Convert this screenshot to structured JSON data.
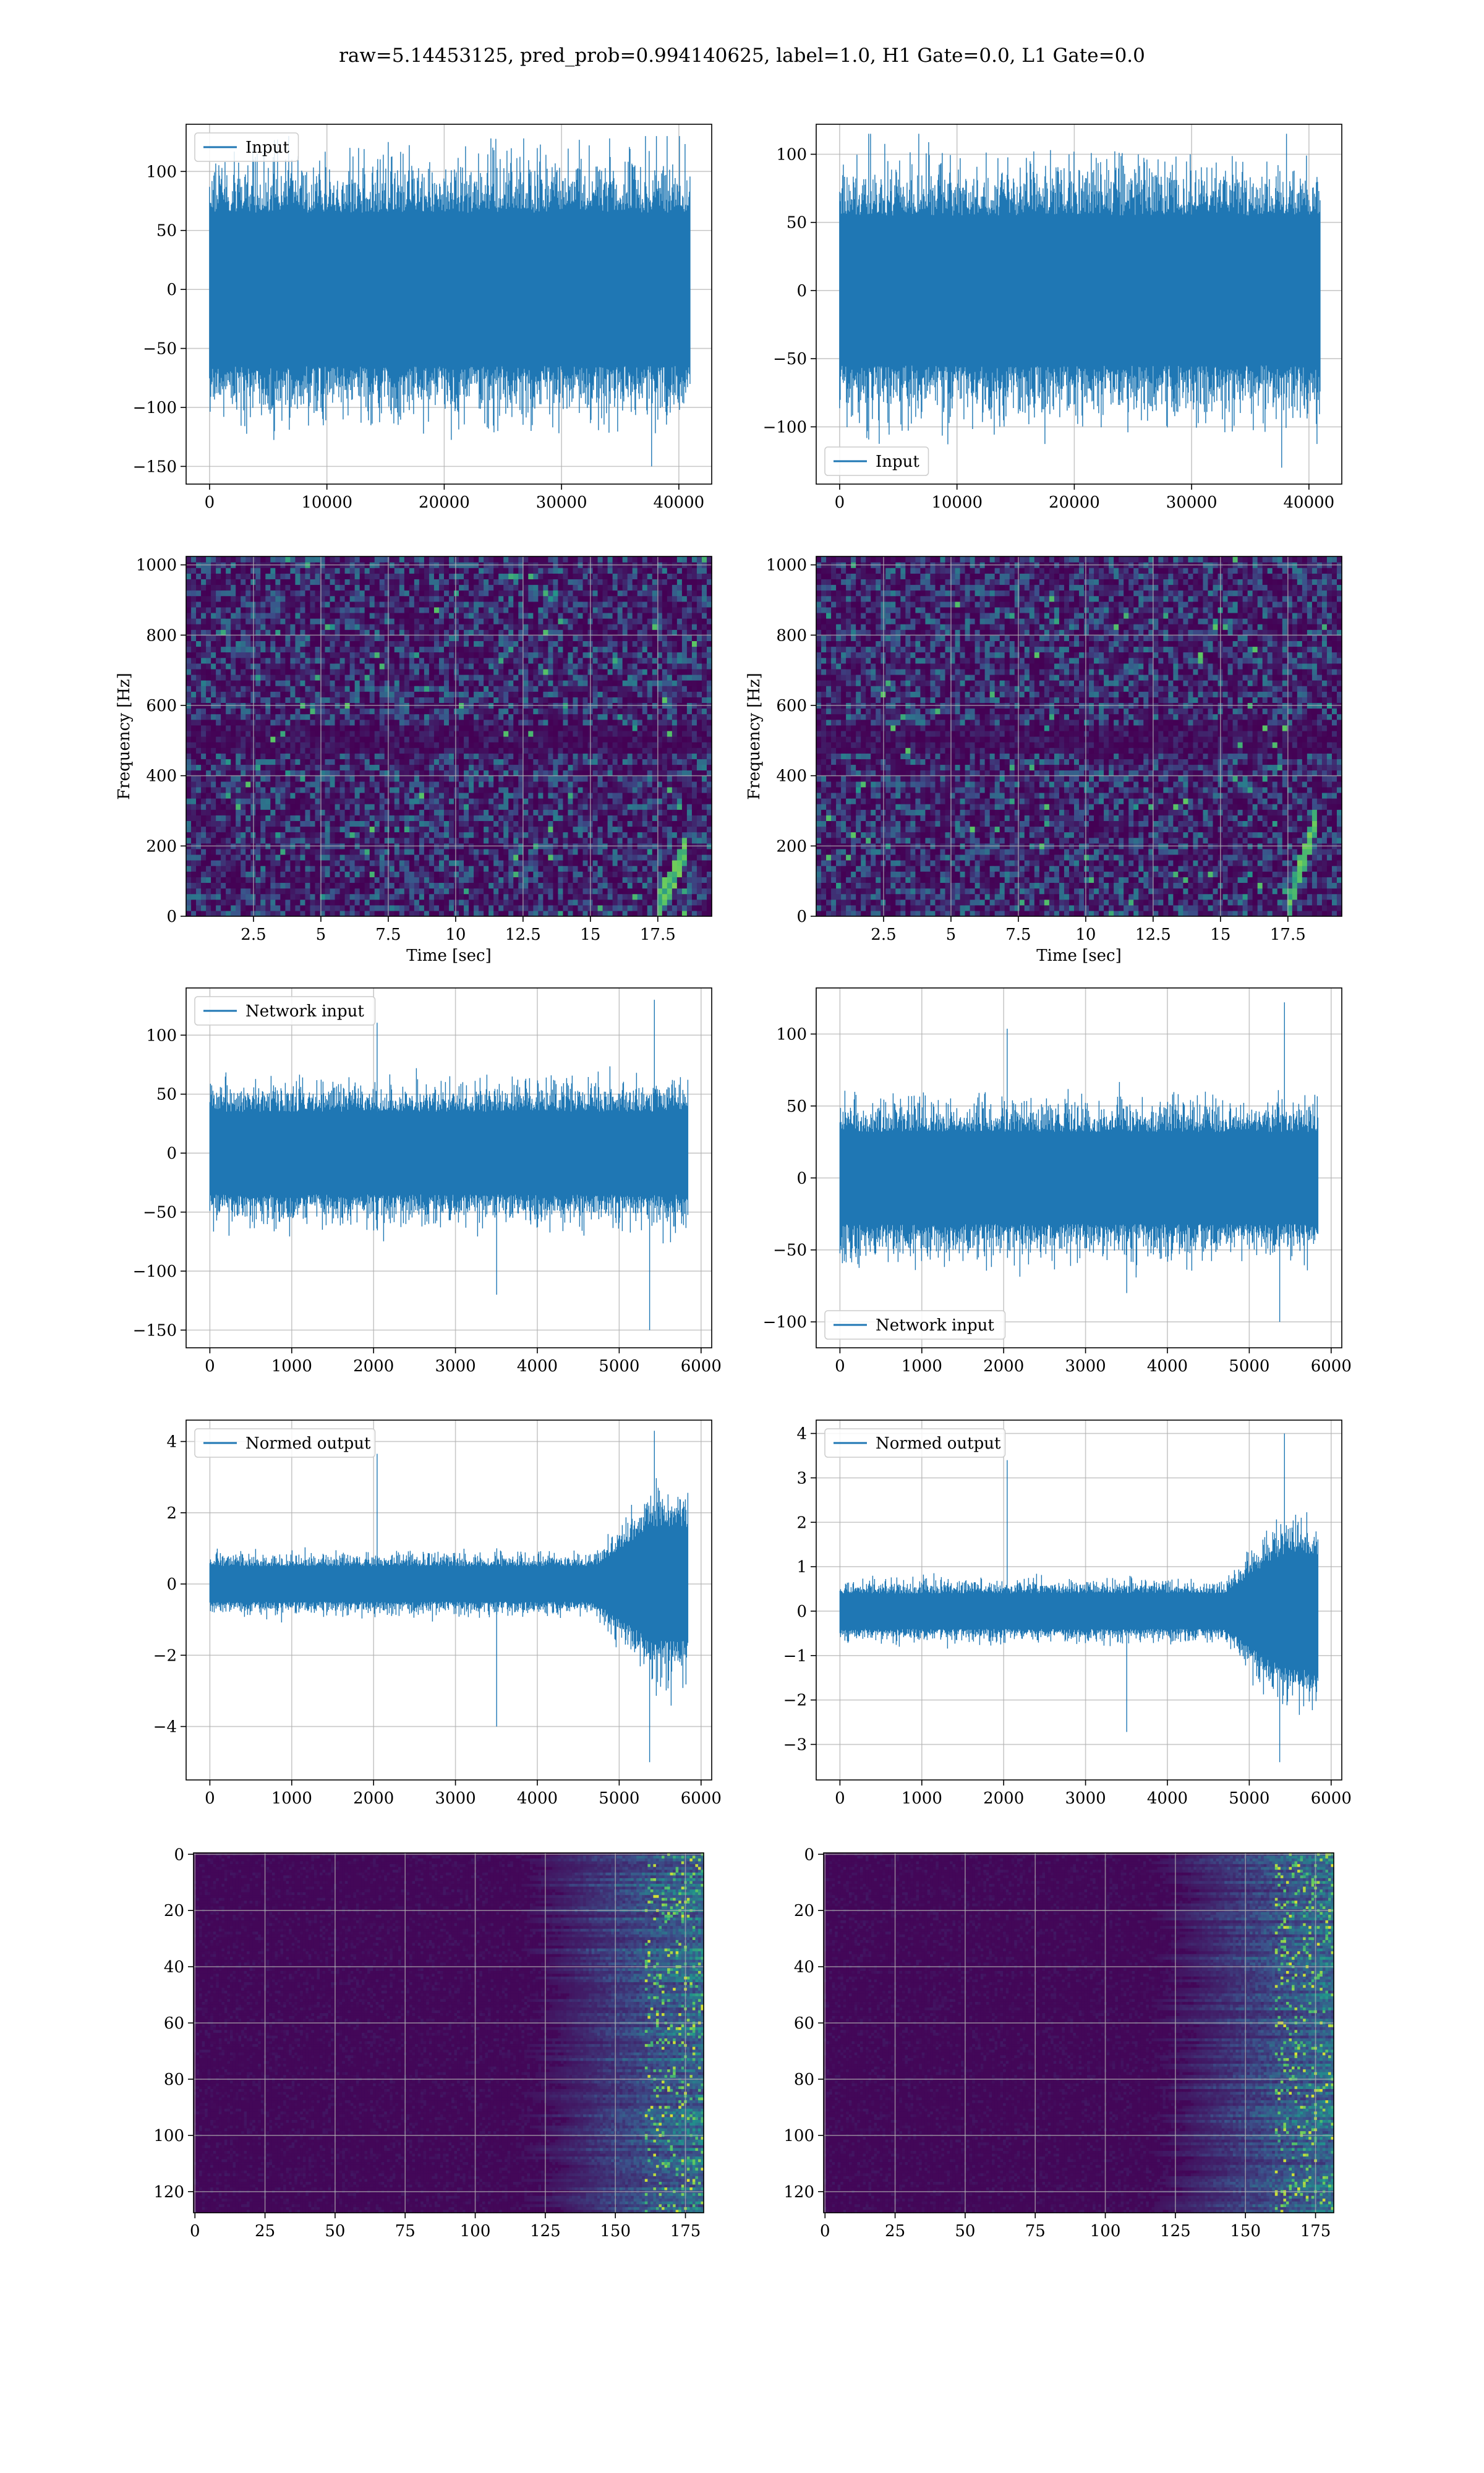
{
  "figure": {
    "suptitle": "raw=5.14453125, pred_prob=0.994140625, label=1.0, H1 Gate=0.0, L1 Gate=0.0"
  },
  "colors": {
    "line": "#1f77b4",
    "viridis_low": "#440154",
    "viridis_mid": "#21918c",
    "viridis_high": "#fde725",
    "grid": "#b0b0b0"
  },
  "chart_data": [
    {
      "id": "input-left",
      "type": "line",
      "legend": "Input",
      "legend_loc": "upper-left",
      "xlim": [
        -2000,
        42800
      ],
      "ylim": [
        -165,
        140
      ],
      "xticks": [
        0,
        10000,
        20000,
        30000,
        40000
      ],
      "yticks": [
        -150,
        -100,
        -50,
        0,
        50,
        100
      ],
      "signal": {
        "n": 40960,
        "core_amplitude": 65,
        "peak_max": 130,
        "peak_min": -150
      },
      "xlabel": "",
      "ylabel": "",
      "grid": true
    },
    {
      "id": "input-right",
      "type": "line",
      "legend": "Input",
      "legend_loc": "lower-left",
      "xlim": [
        -2000,
        42800
      ],
      "ylim": [
        -142,
        122
      ],
      "xticks": [
        0,
        10000,
        20000,
        30000,
        40000
      ],
      "yticks": [
        -100,
        -50,
        0,
        50,
        100
      ],
      "signal": {
        "n": 40960,
        "core_amplitude": 55,
        "peak_max": 115,
        "peak_min": -130
      },
      "xlabel": "",
      "ylabel": "",
      "grid": true
    },
    {
      "id": "spectrogram-left",
      "type": "heatmap",
      "xlim": [
        0,
        19.5
      ],
      "ylim": [
        0,
        1024
      ],
      "xticks": [
        2.5,
        5.0,
        7.5,
        10.0,
        12.5,
        15.0,
        17.5
      ],
      "yticks": [
        0,
        200,
        400,
        600,
        800,
        1000
      ],
      "xlabel": "Time [sec]",
      "ylabel": "Frequency [Hz]",
      "grid": true,
      "chirp": {
        "t_start": 17.5,
        "t_end": 18.5,
        "f_start": 30,
        "f_end": 180
      }
    },
    {
      "id": "spectrogram-right",
      "type": "heatmap",
      "xlim": [
        0,
        19.5
      ],
      "ylim": [
        0,
        1024
      ],
      "xticks": [
        2.5,
        5.0,
        7.5,
        10.0,
        12.5,
        15.0,
        17.5
      ],
      "yticks": [
        0,
        200,
        400,
        600,
        800,
        1000
      ],
      "xlabel": "Time [sec]",
      "ylabel": "Frequency [Hz]",
      "grid": true,
      "chirp": {
        "t_start": 17.5,
        "t_end": 18.5,
        "f_start": 30,
        "f_end": 260
      }
    },
    {
      "id": "network-input-left",
      "type": "line",
      "legend": "Network input",
      "legend_loc": "upper-left",
      "xlim": [
        -290,
        6130
      ],
      "ylim": [
        -165,
        140
      ],
      "xticks": [
        0,
        1000,
        2000,
        3000,
        4000,
        5000,
        6000
      ],
      "yticks": [
        -150,
        -100,
        -50,
        0,
        50,
        100
      ],
      "signal": {
        "n": 5840,
        "core_amplitude": 35,
        "peak_max": 130,
        "peak_min": -150
      },
      "xlabel": "",
      "ylabel": "",
      "grid": true
    },
    {
      "id": "network-input-right",
      "type": "line",
      "legend": "Network input",
      "legend_loc": "lower-left",
      "xlim": [
        -290,
        6130
      ],
      "ylim": [
        -118,
        132
      ],
      "xticks": [
        0,
        1000,
        2000,
        3000,
        4000,
        5000,
        6000
      ],
      "yticks": [
        -100,
        -50,
        0,
        50,
        100
      ],
      "signal": {
        "n": 5840,
        "core_amplitude": 32,
        "peak_max": 122,
        "peak_min": -100
      },
      "xlabel": "",
      "ylabel": "",
      "grid": true
    },
    {
      "id": "normed-output-left",
      "type": "line",
      "legend": "Normed output",
      "legend_loc": "upper-left",
      "xlim": [
        -290,
        6130
      ],
      "ylim": [
        -5.5,
        4.6
      ],
      "xticks": [
        0,
        1000,
        2000,
        3000,
        4000,
        5000,
        6000
      ],
      "yticks": [
        -4,
        -2,
        0,
        2,
        4
      ],
      "signal": {
        "n": 5840,
        "core_amplitude": 0.5,
        "burst_start": 4700,
        "peak_max": 4.3,
        "peak_min": -5.0
      },
      "xlabel": "",
      "ylabel": "",
      "grid": true
    },
    {
      "id": "normed-output-right",
      "type": "line",
      "legend": "Normed output",
      "legend_loc": "upper-left",
      "xlim": [
        -290,
        6130
      ],
      "ylim": [
        -3.8,
        4.3
      ],
      "xticks": [
        0,
        1000,
        2000,
        3000,
        4000,
        5000,
        6000
      ],
      "yticks": [
        -3,
        -2,
        -1,
        0,
        1,
        2,
        3,
        4
      ],
      "signal": {
        "n": 5840,
        "core_amplitude": 0.4,
        "burst_start": 4700,
        "peak_max": 4.0,
        "peak_min": -3.4
      },
      "xlabel": "",
      "ylabel": "",
      "grid": true
    },
    {
      "id": "qtransform-left",
      "type": "heatmap",
      "xlim": [
        -0.5,
        181.5
      ],
      "ylim": [
        127.5,
        -0.5
      ],
      "xticks": [
        0,
        25,
        50,
        75,
        100,
        125,
        150,
        175
      ],
      "yticks": [
        0,
        20,
        40,
        60,
        80,
        100,
        120
      ],
      "xlabel": "",
      "ylabel": "",
      "grid": true,
      "activity_start": 125
    },
    {
      "id": "qtransform-right",
      "type": "heatmap",
      "xlim": [
        -0.5,
        181.5
      ],
      "ylim": [
        127.5,
        -0.5
      ],
      "xticks": [
        0,
        25,
        50,
        75,
        100,
        125,
        150,
        175
      ],
      "yticks": [
        0,
        20,
        40,
        60,
        80,
        100,
        120
      ],
      "xlabel": "",
      "ylabel": "",
      "grid": true,
      "activity_start": 125
    }
  ]
}
